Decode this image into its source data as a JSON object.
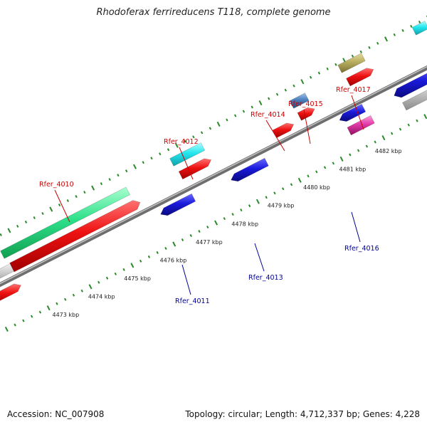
{
  "title": "Rhodoferax ferrireducens T118, complete genome",
  "footer": {
    "accession": "Accession: NC_007908",
    "stats": "Topology: circular; Length: 4,712,337 bp; Genes: 4,228"
  },
  "colors": {
    "backbone": "#909090",
    "forward_cds": "#ee1111",
    "reverse_cds": "#1a1adc",
    "tick": "#2a8a2a",
    "label_forward": "#cc0000",
    "label_reverse": "#000099",
    "rna": "#c8c8c8",
    "green_feature": "#2ee08a",
    "cyan_feature": "#22e6ee",
    "olive_feature": "#b8ae5e",
    "steelblue_feature": "#4a7ebc",
    "magenta_feature": "#e03aa8"
  },
  "kbp_ticks": [
    {
      "label": "4473 kbp"
    },
    {
      "label": "4474 kbp"
    },
    {
      "label": "4475 kbp"
    },
    {
      "label": "4476 kbp"
    },
    {
      "label": "4477 kbp"
    },
    {
      "label": "4478 kbp"
    },
    {
      "label": "4479 kbp"
    },
    {
      "label": "4480 kbp"
    },
    {
      "label": "4481 kbp"
    },
    {
      "label": "4482 kbp"
    }
  ],
  "gene_labels": [
    {
      "name": "Rfer_4010",
      "strand": "forward"
    },
    {
      "name": "Rfer_4011",
      "strand": "reverse"
    },
    {
      "name": "Rfer_4012",
      "strand": "forward"
    },
    {
      "name": "Rfer_4013",
      "strand": "reverse"
    },
    {
      "name": "Rfer_4014",
      "strand": "forward"
    },
    {
      "name": "Rfer_4015",
      "strand": "forward"
    },
    {
      "name": "Rfer_4016",
      "strand": "reverse"
    },
    {
      "name": "Rfer_4017",
      "strand": "forward"
    }
  ]
}
